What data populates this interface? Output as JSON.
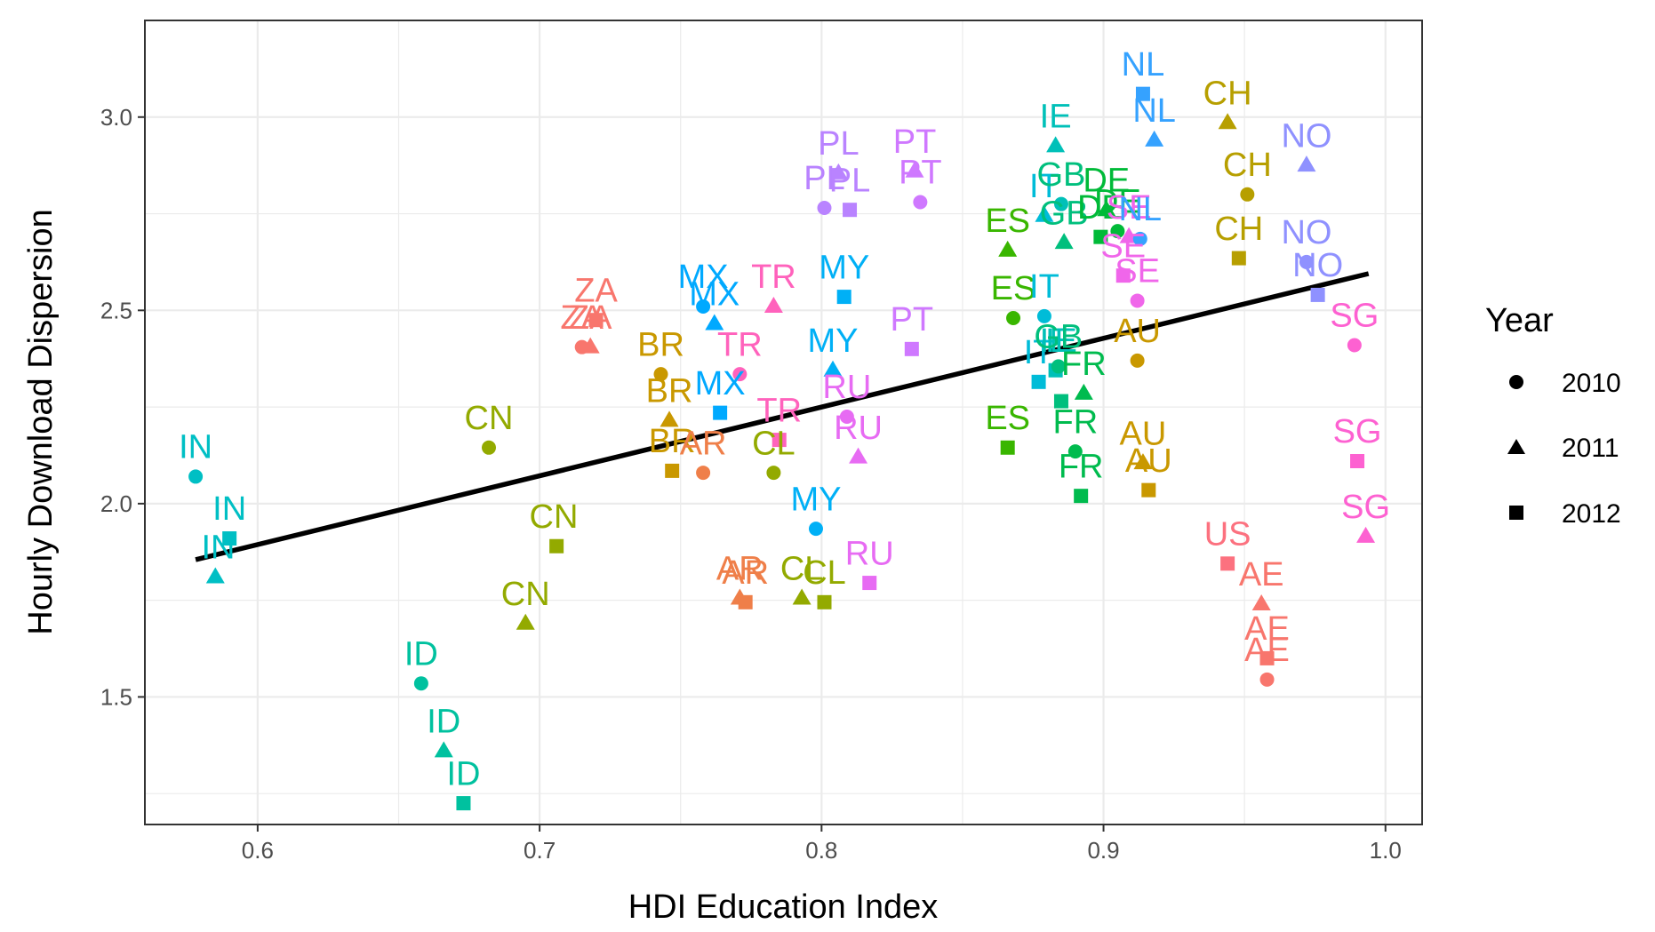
{
  "chart_data": {
    "type": "scatter",
    "xlabel": "HDI Education Index",
    "ylabel": "Hourly Download Dispersion",
    "xlim": [
      0.56,
      1.013
    ],
    "ylim": [
      1.17,
      3.25
    ],
    "x_ticks": [
      0.6,
      0.7,
      0.8,
      0.9,
      1.0
    ],
    "x_tick_labels": [
      "0.6",
      "0.7",
      "0.8",
      "0.9",
      "1.0"
    ],
    "y_ticks": [
      1.5,
      2.0,
      2.5,
      3.0
    ],
    "y_tick_labels": [
      "1.5",
      "2.0",
      "2.5",
      "3.0"
    ],
    "grid": true,
    "legend": {
      "title": "Year",
      "placement": "right",
      "entries": [
        {
          "label": "2010",
          "shape": "circle"
        },
        {
          "label": "2011",
          "shape": "triangle"
        },
        {
          "label": "2012",
          "shape": "square"
        }
      ]
    },
    "trend_line": {
      "x": [
        0.578,
        0.994
      ],
      "y": [
        1.855,
        2.595
      ],
      "color": "#000000"
    },
    "country_colors": {
      "AE": "#f8766d",
      "US": "#fc717f",
      "ZA": "#f8766d",
      "AR": "#ef7f49",
      "BR": "#c99800",
      "CH": "#b79f00",
      "AU": "#c99800",
      "CN": "#93aa00",
      "CL": "#93aa00",
      "ES": "#39b600",
      "FR": "#00bb4e",
      "DE": "#00ba38",
      "GB": "#00bf7d",
      "ID": "#00c19f",
      "IN": "#00bfc4",
      "IE": "#00c0b8",
      "IT": "#00bcd8",
      "MY": "#00b0f6",
      "MX": "#00a9ff",
      "NL": "#35a2ff",
      "NO": "#8f91ff",
      "PL": "#b983ff",
      "PT": "#cf78ff",
      "RU": "#e76bf3",
      "SE": "#f066ea",
      "SG": "#fd61d1",
      "TR": "#ff62bc"
    },
    "points": [
      {
        "c": "IN",
        "year": "2010",
        "x": 0.578,
        "y": 2.07
      },
      {
        "c": "IN",
        "year": "2011",
        "x": 0.585,
        "y": 1.81
      },
      {
        "c": "IN",
        "year": "2012",
        "x": 0.59,
        "y": 1.91
      },
      {
        "c": "ID",
        "year": "2010",
        "x": 0.658,
        "y": 1.535
      },
      {
        "c": "ID",
        "year": "2011",
        "x": 0.666,
        "y": 1.36
      },
      {
        "c": "ID",
        "year": "2012",
        "x": 0.673,
        "y": 1.225
      },
      {
        "c": "CN",
        "year": "2010",
        "x": 0.682,
        "y": 2.145
      },
      {
        "c": "CN",
        "year": "2011",
        "x": 0.695,
        "y": 1.69
      },
      {
        "c": "CN",
        "year": "2012",
        "x": 0.706,
        "y": 1.89
      },
      {
        "c": "ZA",
        "year": "2010",
        "x": 0.715,
        "y": 2.405
      },
      {
        "c": "ZA",
        "year": "2011",
        "x": 0.718,
        "y": 2.405
      },
      {
        "c": "ZA",
        "year": "2012",
        "x": 0.72,
        "y": 2.475
      },
      {
        "c": "BR",
        "year": "2010",
        "x": 0.743,
        "y": 2.335
      },
      {
        "c": "BR",
        "year": "2011",
        "x": 0.746,
        "y": 2.215
      },
      {
        "c": "BR",
        "year": "2012",
        "x": 0.747,
        "y": 2.085
      },
      {
        "c": "MX",
        "year": "2010",
        "x": 0.758,
        "y": 2.51
      },
      {
        "c": "MX",
        "year": "2011",
        "x": 0.762,
        "y": 2.465
      },
      {
        "c": "MX",
        "year": "2012",
        "x": 0.764,
        "y": 2.235
      },
      {
        "c": "AR",
        "year": "2010",
        "x": 0.758,
        "y": 2.08
      },
      {
        "c": "AR",
        "year": "2011",
        "x": 0.771,
        "y": 1.755
      },
      {
        "c": "AR",
        "year": "2012",
        "x": 0.773,
        "y": 1.745
      },
      {
        "c": "TR",
        "year": "2010",
        "x": 0.771,
        "y": 2.335
      },
      {
        "c": "TR",
        "year": "2011",
        "x": 0.783,
        "y": 2.51
      },
      {
        "c": "TR",
        "year": "2012",
        "x": 0.785,
        "y": 2.165
      },
      {
        "c": "CL",
        "year": "2010",
        "x": 0.783,
        "y": 2.08
      },
      {
        "c": "CL",
        "year": "2011",
        "x": 0.793,
        "y": 1.755
      },
      {
        "c": "CL",
        "year": "2012",
        "x": 0.801,
        "y": 1.745
      },
      {
        "c": "MY",
        "year": "2010",
        "x": 0.798,
        "y": 1.935
      },
      {
        "c": "MY",
        "year": "2011",
        "x": 0.804,
        "y": 2.345
      },
      {
        "c": "MY",
        "year": "2012",
        "x": 0.808,
        "y": 2.535
      },
      {
        "c": "PL",
        "year": "2010",
        "x": 0.801,
        "y": 2.765
      },
      {
        "c": "PL",
        "year": "2011",
        "x": 0.806,
        "y": 2.855
      },
      {
        "c": "PL",
        "year": "2012",
        "x": 0.81,
        "y": 2.76
      },
      {
        "c": "RU",
        "year": "2010",
        "x": 0.809,
        "y": 2.225
      },
      {
        "c": "RU",
        "year": "2011",
        "x": 0.813,
        "y": 2.12
      },
      {
        "c": "RU",
        "year": "2012",
        "x": 0.817,
        "y": 1.795
      },
      {
        "c": "PT",
        "year": "2010",
        "x": 0.835,
        "y": 2.78
      },
      {
        "c": "PT",
        "year": "2011",
        "x": 0.833,
        "y": 2.86
      },
      {
        "c": "PT",
        "year": "2012",
        "x": 0.832,
        "y": 2.4
      },
      {
        "c": "ES",
        "year": "2010",
        "x": 0.868,
        "y": 2.48
      },
      {
        "c": "ES",
        "year": "2011",
        "x": 0.866,
        "y": 2.655
      },
      {
        "c": "ES",
        "year": "2012",
        "x": 0.866,
        "y": 2.145
      },
      {
        "c": "IT",
        "year": "2010",
        "x": 0.879,
        "y": 2.485
      },
      {
        "c": "IT",
        "year": "2011",
        "x": 0.879,
        "y": 2.745
      },
      {
        "c": "IT",
        "year": "2012",
        "x": 0.877,
        "y": 2.315
      },
      {
        "c": "IE",
        "year": "2010",
        "x": 0.885,
        "y": 2.775
      },
      {
        "c": "IE",
        "year": "2011",
        "x": 0.883,
        "y": 2.925
      },
      {
        "c": "IE",
        "year": "2012",
        "x": 0.883,
        "y": 2.345
      },
      {
        "c": "GB",
        "year": "2010",
        "x": 0.884,
        "y": 2.355
      },
      {
        "c": "GB",
        "year": "2011",
        "x": 0.886,
        "y": 2.675
      },
      {
        "c": "GB",
        "year": "2012",
        "x": 0.885,
        "y": 2.265
      },
      {
        "c": "FR",
        "year": "2010",
        "x": 0.89,
        "y": 2.135
      },
      {
        "c": "FR",
        "year": "2011",
        "x": 0.893,
        "y": 2.285
      },
      {
        "c": "FR",
        "year": "2012",
        "x": 0.892,
        "y": 2.02
      },
      {
        "c": "DE",
        "year": "2010",
        "x": 0.905,
        "y": 2.705
      },
      {
        "c": "DE",
        "year": "2011",
        "x": 0.901,
        "y": 2.76
      },
      {
        "c": "DE",
        "year": "2012",
        "x": 0.899,
        "y": 2.69
      },
      {
        "c": "AU",
        "year": "2010",
        "x": 0.912,
        "y": 2.37
      },
      {
        "c": "AU",
        "year": "2011",
        "x": 0.914,
        "y": 2.105
      },
      {
        "c": "AU",
        "year": "2012",
        "x": 0.916,
        "y": 2.035
      },
      {
        "c": "SE",
        "year": "2010",
        "x": 0.912,
        "y": 2.525
      },
      {
        "c": "SE",
        "year": "2011",
        "x": 0.909,
        "y": 2.69
      },
      {
        "c": "SE",
        "year": "2012",
        "x": 0.907,
        "y": 2.59
      },
      {
        "c": "NL",
        "year": "2010",
        "x": 0.913,
        "y": 2.685
      },
      {
        "c": "NL",
        "year": "2011",
        "x": 0.918,
        "y": 2.94
      },
      {
        "c": "NL",
        "year": "2012",
        "x": 0.914,
        "y": 3.06
      },
      {
        "c": "CH",
        "year": "2010",
        "x": 0.951,
        "y": 2.8
      },
      {
        "c": "CH",
        "year": "2011",
        "x": 0.944,
        "y": 2.985
      },
      {
        "c": "CH",
        "year": "2012",
        "x": 0.948,
        "y": 2.635
      },
      {
        "c": "US",
        "year": "2012",
        "x": 0.944,
        "y": 1.845
      },
      {
        "c": "AE",
        "year": "2010",
        "x": 0.958,
        "y": 1.545
      },
      {
        "c": "AE",
        "year": "2011",
        "x": 0.956,
        "y": 1.74
      },
      {
        "c": "AE",
        "year": "2012",
        "x": 0.958,
        "y": 1.6
      },
      {
        "c": "NO",
        "year": "2010",
        "x": 0.972,
        "y": 2.625
      },
      {
        "c": "NO",
        "year": "2011",
        "x": 0.972,
        "y": 2.875
      },
      {
        "c": "NO",
        "year": "2012",
        "x": 0.976,
        "y": 2.54
      },
      {
        "c": "SG",
        "year": "2010",
        "x": 0.989,
        "y": 2.41
      },
      {
        "c": "SG",
        "year": "2011",
        "x": 0.993,
        "y": 1.915
      },
      {
        "c": "SG",
        "year": "2012",
        "x": 0.99,
        "y": 2.11
      }
    ],
    "labels": [
      {
        "c": "IN",
        "x": 0.578,
        "y": 2.15
      },
      {
        "c": "IN",
        "x": 0.59,
        "y": 1.99
      },
      {
        "c": "IN",
        "x": 0.586,
        "y": 1.89
      },
      {
        "c": "ID",
        "x": 0.658,
        "y": 1.615
      },
      {
        "c": "ID",
        "x": 0.666,
        "y": 1.44
      },
      {
        "c": "ID",
        "x": 0.673,
        "y": 1.305
      },
      {
        "c": "CN",
        "x": 0.682,
        "y": 2.225
      },
      {
        "c": "CN",
        "x": 0.705,
        "y": 1.97
      },
      {
        "c": "CN",
        "x": 0.695,
        "y": 1.77
      },
      {
        "c": "ZA",
        "x": 0.72,
        "y": 2.555
      },
      {
        "c": "ZA",
        "x": 0.718,
        "y": 2.485
      },
      {
        "c": "ZA",
        "x": 0.715,
        "y": 2.485
      },
      {
        "c": "BR",
        "x": 0.743,
        "y": 2.415
      },
      {
        "c": "BR",
        "x": 0.746,
        "y": 2.295
      },
      {
        "c": "BR",
        "x": 0.747,
        "y": 2.165
      },
      {
        "c": "MX",
        "x": 0.758,
        "y": 2.59
      },
      {
        "c": "MX",
        "x": 0.762,
        "y": 2.545
      },
      {
        "c": "MX",
        "x": 0.764,
        "y": 2.315
      },
      {
        "c": "AR",
        "x": 0.758,
        "y": 2.16
      },
      {
        "c": "AR",
        "x": 0.771,
        "y": 1.835
      },
      {
        "c": "AR",
        "x": 0.773,
        "y": 1.825
      },
      {
        "c": "TR",
        "x": 0.783,
        "y": 2.59
      },
      {
        "c": "TR",
        "x": 0.771,
        "y": 2.415
      },
      {
        "c": "TR",
        "x": 0.785,
        "y": 2.245
      },
      {
        "c": "CL",
        "x": 0.783,
        "y": 2.16
      },
      {
        "c": "CL",
        "x": 0.793,
        "y": 1.835
      },
      {
        "c": "CL",
        "x": 0.801,
        "y": 1.825
      },
      {
        "c": "MY",
        "x": 0.808,
        "y": 2.615
      },
      {
        "c": "MY",
        "x": 0.804,
        "y": 2.425
      },
      {
        "c": "MY",
        "x": 0.798,
        "y": 2.015
      },
      {
        "c": "PL",
        "x": 0.806,
        "y": 2.935
      },
      {
        "c": "PL",
        "x": 0.801,
        "y": 2.845
      },
      {
        "c": "PL",
        "x": 0.81,
        "y": 2.84
      },
      {
        "c": "RU",
        "x": 0.809,
        "y": 2.305
      },
      {
        "c": "RU",
        "x": 0.813,
        "y": 2.2
      },
      {
        "c": "RU",
        "x": 0.817,
        "y": 1.875
      },
      {
        "c": "PT",
        "x": 0.833,
        "y": 2.94
      },
      {
        "c": "PT",
        "x": 0.835,
        "y": 2.86
      },
      {
        "c": "PT",
        "x": 0.832,
        "y": 2.48
      },
      {
        "c": "ES",
        "x": 0.866,
        "y": 2.735
      },
      {
        "c": "ES",
        "x": 0.868,
        "y": 2.56
      },
      {
        "c": "ES",
        "x": 0.866,
        "y": 2.225
      },
      {
        "c": "IT",
        "x": 0.879,
        "y": 2.825
      },
      {
        "c": "IT",
        "x": 0.879,
        "y": 2.565
      },
      {
        "c": "IT",
        "x": 0.877,
        "y": 2.395
      },
      {
        "c": "IE",
        "x": 0.883,
        "y": 3.005
      },
      {
        "c": "IE",
        "x": 0.885,
        "y": 2.425
      },
      {
        "c": "IE",
        "x": 0.883,
        "y": 2.425
      },
      {
        "c": "GB",
        "x": 0.885,
        "y": 2.855
      },
      {
        "c": "GB",
        "x": 0.886,
        "y": 2.755
      },
      {
        "c": "GB",
        "x": 0.884,
        "y": 2.435
      },
      {
        "c": "FR",
        "x": 0.893,
        "y": 2.365
      },
      {
        "c": "FR",
        "x": 0.89,
        "y": 2.215
      },
      {
        "c": "FR",
        "x": 0.892,
        "y": 2.1
      },
      {
        "c": "DE",
        "x": 0.901,
        "y": 2.84
      },
      {
        "c": "DE",
        "x": 0.905,
        "y": 2.785
      },
      {
        "c": "DE",
        "x": 0.899,
        "y": 2.77
      },
      {
        "c": "AU",
        "x": 0.912,
        "y": 2.45
      },
      {
        "c": "AU",
        "x": 0.914,
        "y": 2.185
      },
      {
        "c": "AU",
        "x": 0.916,
        "y": 2.115
      },
      {
        "c": "SE",
        "x": 0.912,
        "y": 2.605
      },
      {
        "c": "SE",
        "x": 0.909,
        "y": 2.77
      },
      {
        "c": "SE",
        "x": 0.907,
        "y": 2.67
      },
      {
        "c": "NL",
        "x": 0.914,
        "y": 3.14
      },
      {
        "c": "NL",
        "x": 0.918,
        "y": 3.02
      },
      {
        "c": "NL",
        "x": 0.913,
        "y": 2.765
      },
      {
        "c": "CH",
        "x": 0.944,
        "y": 3.065
      },
      {
        "c": "CH",
        "x": 0.951,
        "y": 2.88
      },
      {
        "c": "CH",
        "x": 0.948,
        "y": 2.715
      },
      {
        "c": "US",
        "x": 0.944,
        "y": 1.925
      },
      {
        "c": "AE",
        "x": 0.956,
        "y": 1.82
      },
      {
        "c": "AE",
        "x": 0.958,
        "y": 1.68
      },
      {
        "c": "AE",
        "x": 0.958,
        "y": 1.625
      },
      {
        "c": "NO",
        "x": 0.972,
        "y": 2.955
      },
      {
        "c": "NO",
        "x": 0.972,
        "y": 2.705
      },
      {
        "c": "NO",
        "x": 0.976,
        "y": 2.62
      },
      {
        "c": "SG",
        "x": 0.989,
        "y": 2.49
      },
      {
        "c": "SG",
        "x": 0.99,
        "y": 2.19
      },
      {
        "c": "SG",
        "x": 0.993,
        "y": 1.995
      }
    ]
  }
}
